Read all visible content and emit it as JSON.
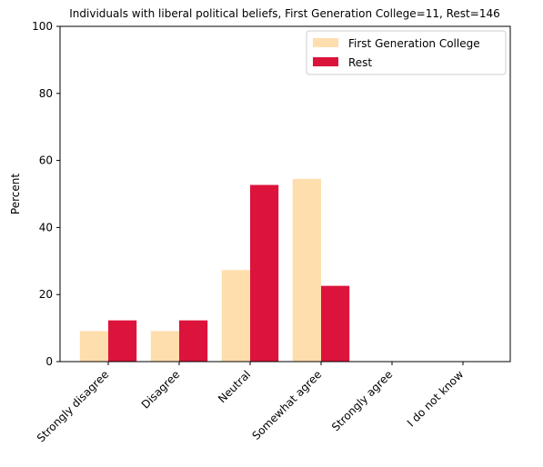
{
  "chart_data": {
    "type": "bar",
    "title": "Individuals with liberal political beliefs, First Generation College=11, Rest=146",
    "xlabel": "",
    "ylabel": "Percent",
    "ylim": [
      0,
      100
    ],
    "yticks": [
      0,
      20,
      40,
      60,
      80,
      100
    ],
    "categories": [
      "Strongly disagree",
      "Disagree",
      "Neutral",
      "Somewhat agree",
      "Strongly agree",
      "I do not know"
    ],
    "series": [
      {
        "name": "First Generation College",
        "color": "#FFDEAD",
        "values": [
          9.1,
          9.1,
          27.3,
          54.5,
          0,
          0
        ]
      },
      {
        "name": "Rest",
        "color": "#DC143C",
        "values": [
          12.3,
          12.3,
          52.7,
          22.6,
          0,
          0
        ]
      }
    ],
    "legend": "top-right",
    "grid": false
  }
}
